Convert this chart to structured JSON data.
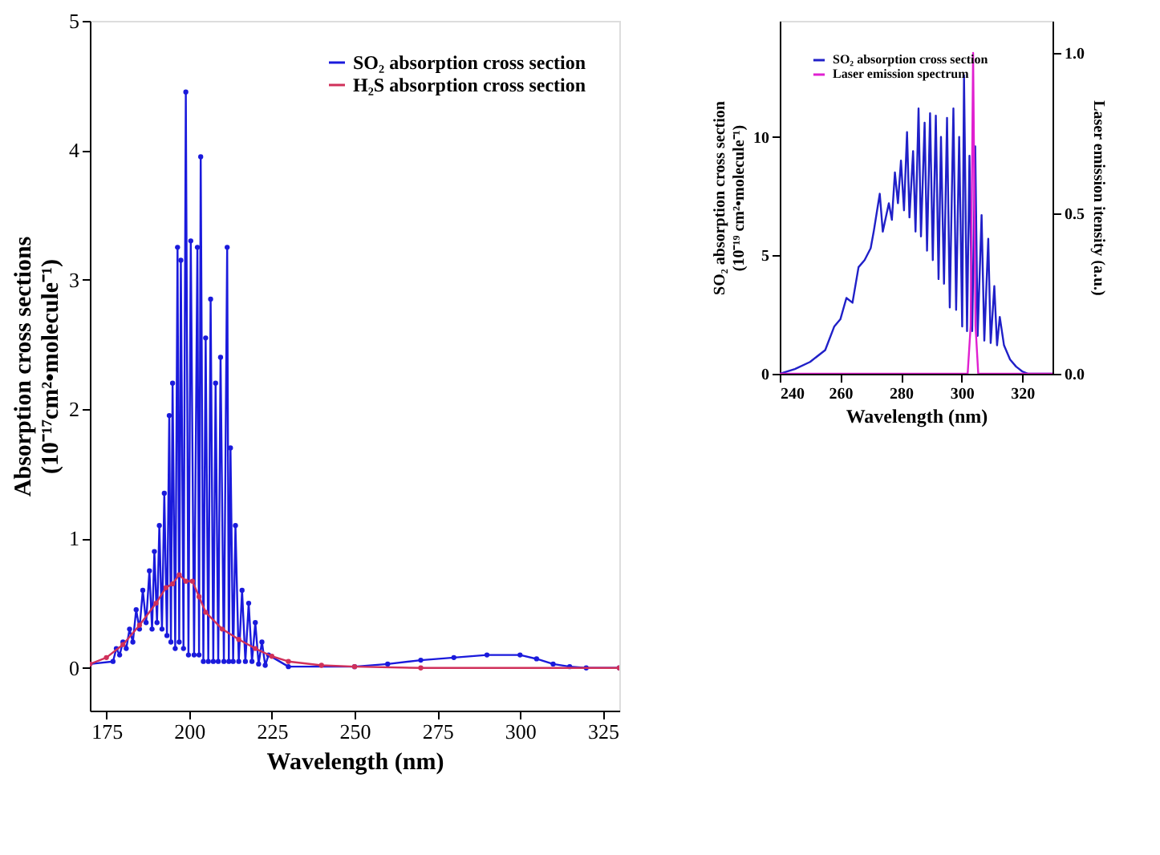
{
  "chart_data": [
    {
      "type": "line",
      "xlabel": "Wavelength (nm)",
      "ylabel": "Absorption cross sections\n(10⁻¹⁷cm²•molecule⁻¹)",
      "xlim": [
        170,
        330
      ],
      "ylim": [
        -0.33,
        5
      ],
      "xticks": [
        175,
        200,
        225,
        250,
        275,
        300,
        325
      ],
      "yticks": [
        0,
        1,
        2,
        3,
        4,
        5
      ],
      "grid": false,
      "legend": "top right",
      "marker": "circle",
      "series": [
        {
          "name": "SO₂ absorption cross section",
          "color": "#1a1adc",
          "x": [
            170,
            177,
            178,
            179,
            180,
            181,
            182,
            183,
            184,
            185,
            186,
            187,
            188,
            188.8,
            189.5,
            190.3,
            191,
            191.8,
            192.5,
            193.3,
            194,
            194.5,
            195,
            195.8,
            196.5,
            197,
            197.5,
            198.3,
            199,
            199.8,
            200.5,
            201.5,
            202.5,
            203,
            203.5,
            204.3,
            205,
            205.8,
            206.5,
            207.3,
            208,
            208.8,
            209.5,
            210.5,
            211.5,
            212,
            212.5,
            213.3,
            214,
            215,
            216,
            217,
            218,
            219,
            220,
            221,
            222,
            223,
            224,
            230,
            250,
            260,
            270,
            280,
            290,
            300,
            305,
            310,
            315,
            320,
            330
          ],
          "values": [
            0.03,
            0.05,
            0.15,
            0.1,
            0.2,
            0.15,
            0.3,
            0.2,
            0.45,
            0.3,
            0.6,
            0.35,
            0.75,
            0.3,
            0.9,
            0.35,
            1.1,
            0.3,
            1.35,
            0.25,
            1.95,
            0.2,
            2.2,
            0.15,
            3.25,
            0.2,
            3.15,
            0.15,
            4.45,
            0.1,
            3.3,
            0.1,
            3.25,
            0.1,
            3.95,
            0.05,
            2.55,
            0.05,
            2.85,
            0.05,
            2.2,
            0.05,
            2.4,
            0.05,
            3.25,
            0.05,
            1.7,
            0.05,
            1.1,
            0.05,
            0.6,
            0.05,
            0.5,
            0.05,
            0.35,
            0.03,
            0.2,
            0.02,
            0.1,
            0.01,
            0.01,
            0.03,
            0.06,
            0.08,
            0.1,
            0.1,
            0.07,
            0.03,
            0.01,
            0,
            0
          ]
        },
        {
          "name": "H₂S absorption cross section",
          "color": "#d0305a",
          "x": [
            170,
            175,
            180,
            185,
            190,
            193,
            195,
            197,
            199,
            201,
            203,
            205,
            210,
            215,
            220,
            225,
            230,
            240,
            250,
            270,
            330
          ],
          "values": [
            0.03,
            0.08,
            0.18,
            0.33,
            0.5,
            0.62,
            0.65,
            0.72,
            0.67,
            0.67,
            0.55,
            0.43,
            0.3,
            0.22,
            0.15,
            0.09,
            0.05,
            0.02,
            0.01,
            0,
            0
          ]
        }
      ]
    },
    {
      "type": "line",
      "xlabel": "Wavelength (nm)",
      "ylabel": "SO₂ absorption cross section\n(10⁻¹⁹ cm²•molecule⁻¹)",
      "y2label": "Laser emission itensity (a.u.)",
      "xlim": [
        240,
        330
      ],
      "ylim": [
        0,
        14.9
      ],
      "y2lim": [
        0,
        1.1
      ],
      "xticks": [
        240,
        260,
        280,
        300,
        320
      ],
      "yticks": [
        0,
        5,
        10
      ],
      "y2ticks": [
        {
          "value": 0,
          "label": "0.0"
        },
        {
          "value": 0.5,
          "label": "0.5"
        },
        {
          "value": 1,
          "label": "1.0"
        }
      ],
      "grid": false,
      "legend": "top left",
      "series": [
        {
          "name": "SO₂ absorption cross section",
          "color": "#2020c8",
          "x": [
            240,
            245,
            250,
            255,
            258,
            260,
            262,
            264,
            266,
            268,
            270,
            271,
            273,
            274,
            276,
            277,
            278,
            279,
            280,
            281,
            282,
            282.8,
            284,
            284.8,
            285.8,
            286.6,
            287.8,
            288.6,
            289.6,
            290.5,
            291.5,
            292.4,
            293.2,
            294.2,
            295.2,
            296.1,
            297.3,
            298.2,
            299.2,
            300.2,
            300.8,
            301.8,
            302.6,
            303.5,
            304.5,
            305.3,
            306.6,
            307.5,
            308.8,
            309.6,
            310.8,
            311.7,
            312.6,
            314,
            316,
            318,
            320,
            322,
            330
          ],
          "values": [
            0,
            0.2,
            0.5,
            1.0,
            2.0,
            2.3,
            3.2,
            3.0,
            4.5,
            4.8,
            5.3,
            6.0,
            7.6,
            6.0,
            7.2,
            6.5,
            8.5,
            7.2,
            9.0,
            6.9,
            10.2,
            6.6,
            9.4,
            6.0,
            11.2,
            5.8,
            10.6,
            5.2,
            11.0,
            4.8,
            10.9,
            4.0,
            10.0,
            3.8,
            10.8,
            2.8,
            11.2,
            2.7,
            10.0,
            2.0,
            12.6,
            1.8,
            9.2,
            1.8,
            9.6,
            1.6,
            6.7,
            1.4,
            5.7,
            1.3,
            3.7,
            1.2,
            2.4,
            1.2,
            0.6,
            0.3,
            0.1,
            0,
            0
          ]
        },
        {
          "name": "Laser emission spectrum",
          "color": "#e020d0",
          "axis": "y2",
          "x": [
            240,
            302,
            303,
            303.8,
            304.6,
            305.5,
            330
          ],
          "values": [
            0,
            0,
            0.15,
            1.0,
            0.15,
            0,
            0
          ]
        }
      ]
    }
  ]
}
